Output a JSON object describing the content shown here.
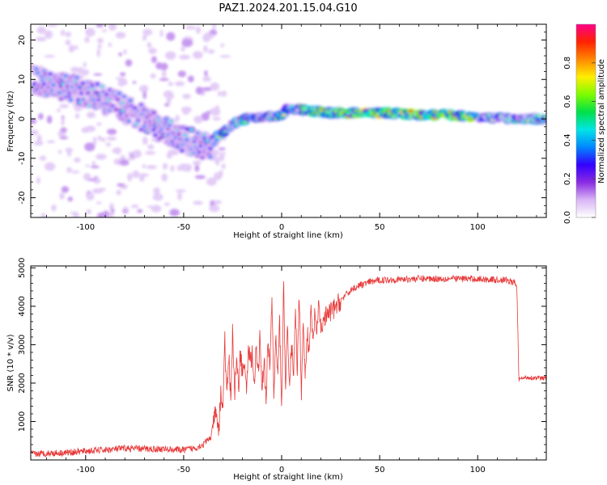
{
  "title": "PAZ1.2024.201.15.04.G10",
  "chart_data": [
    {
      "type": "heatmap",
      "xlabel": "Height of straight line (km)",
      "ylabel": "Frequency (Hz)",
      "xlim": [
        -128,
        135
      ],
      "ylim": [
        -25,
        24
      ],
      "xticks": [
        -100,
        -50,
        0,
        50,
        100
      ],
      "xtick_labels": [
        "-100",
        "-50",
        "0",
        "50",
        "100"
      ],
      "yticks": [
        -20,
        -10,
        0,
        10,
        20
      ],
      "ytick_labels": [
        "-20",
        "-10",
        "0",
        "10",
        "20"
      ],
      "ridge": {
        "x": [
          -125,
          -115,
          -105,
          -100,
          -95,
          -85,
          -75,
          -65,
          -55,
          -48,
          -42,
          -37,
          -33,
          -28,
          -22,
          -15,
          -8,
          -3,
          0,
          3,
          8,
          15,
          25,
          40,
          55,
          70,
          85,
          100,
          115,
          125,
          135
        ],
        "y": [
          9.5,
          8.5,
          7.5,
          6.5,
          6.0,
          4.0,
          1.5,
          -1.5,
          -4.0,
          -5.5,
          -6.5,
          -7.5,
          -4.5,
          -2.5,
          -0.5,
          0.5,
          0.5,
          0.5,
          1.0,
          2.5,
          2.5,
          2.0,
          1.5,
          1.5,
          1.5,
          1.0,
          1.0,
          0.5,
          0.0,
          0.0,
          0.0
        ]
      },
      "colorbar": {
        "label": "Normalized spectral amplitude",
        "ticks": [
          0.0,
          0.2,
          0.4,
          0.6,
          0.8
        ],
        "tick_labels": [
          "0.0",
          "0.2",
          "0.4",
          "0.6",
          "0.8"
        ],
        "range": [
          0,
          1
        ],
        "colors": [
          "#ffffff",
          "#d9b5f5",
          "#8a2be2",
          "#3300ff",
          "#0088ff",
          "#00e5e5",
          "#00e04a",
          "#7cfc00",
          "#ffee00",
          "#ff8800",
          "#ff2200",
          "#ff0088"
        ]
      }
    },
    {
      "type": "line",
      "xlabel": "Height of straight line (km)",
      "ylabel": "SNR (10 * v/v)",
      "xlim": [
        -128,
        135
      ],
      "ylim": [
        0,
        5050
      ],
      "xticks": [
        -100,
        -50,
        0,
        50,
        100
      ],
      "xtick_labels": [
        "-100",
        "-50",
        "0",
        "50",
        "100"
      ],
      "yticks": [
        1000,
        2000,
        3000,
        4000,
        5000
      ],
      "ytick_labels": [
        "1000",
        "2000",
        "3000",
        "4000",
        "5000"
      ],
      "line_color": "#e83a3a",
      "series": [
        {
          "x": [
            -128,
            -120,
            -110,
            -100,
            -90,
            -80,
            -70,
            -60,
            -50,
            -45,
            -40,
            -36,
            -34,
            -32,
            -31,
            -30,
            -29,
            -28,
            -27,
            -26,
            -25,
            -24,
            -23,
            -22,
            -21,
            -20,
            -19,
            -18,
            -17,
            -16,
            -15,
            -14,
            -13,
            -12,
            -11,
            -10,
            -9,
            -8,
            -7,
            -6,
            -5,
            -4,
            -3,
            -2,
            -1,
            0,
            1,
            2,
            3,
            4,
            5,
            6,
            7,
            8,
            9,
            10,
            11,
            12,
            13,
            14,
            15,
            16,
            17,
            18,
            19,
            20,
            22,
            24,
            26,
            28,
            30,
            33,
            36,
            40,
            45,
            50,
            60,
            70,
            80,
            90,
            100,
            110,
            115,
            119,
            120,
            121,
            125,
            130,
            135
          ],
          "y": [
            150,
            170,
            190,
            230,
            260,
            300,
            290,
            280,
            260,
            300,
            400,
            600,
            1200,
            800,
            1800,
            1300,
            3200,
            1500,
            2800,
            1600,
            3400,
            1700,
            2500,
            1900,
            2900,
            2200,
            2600,
            1700,
            3000,
            2500,
            2800,
            1800,
            2900,
            2200,
            3300,
            1800,
            2700,
            1500,
            3000,
            2400,
            4300,
            1700,
            3200,
            2100,
            3600,
            1400,
            4600,
            2000,
            3500,
            1600,
            3200,
            2000,
            3800,
            2300,
            4500,
            1700,
            3500,
            2200,
            3400,
            2600,
            4000,
            2900,
            3900,
            3200,
            4100,
            3400,
            3700,
            3800,
            3900,
            4000,
            4150,
            4300,
            4450,
            4550,
            4630,
            4680,
            4700,
            4720,
            4720,
            4720,
            4710,
            4690,
            4680,
            4600,
            4500,
            2100,
            2150,
            2130,
            2120
          ]
        }
      ]
    }
  ]
}
